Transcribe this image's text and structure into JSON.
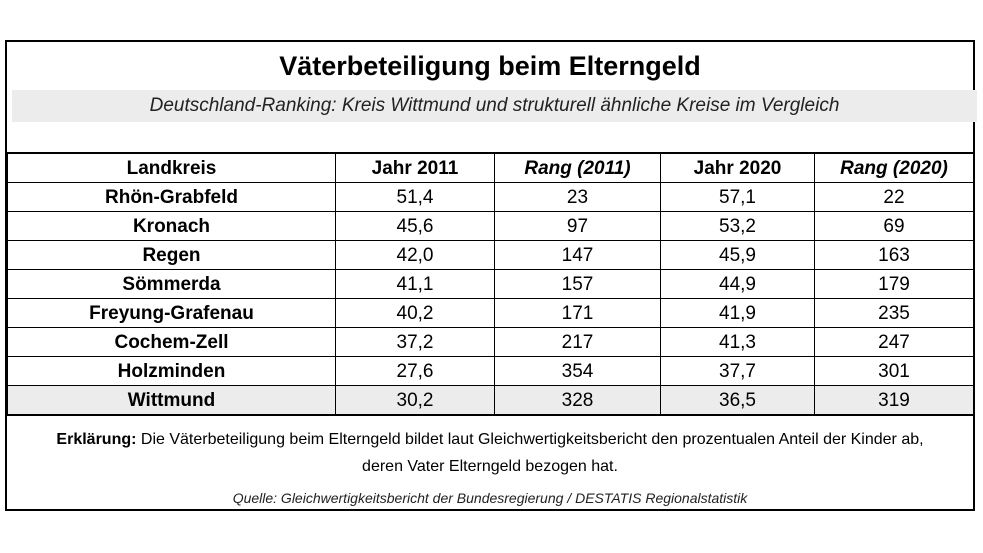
{
  "title": "Väterbeteiligung beim Elterngeld",
  "subtitle": "Deutschland-Ranking: Kreis Wittmund und strukturell ähnliche Kreise im Vergleich",
  "table": {
    "headers": [
      "Landkreis",
      "Jahr 2011",
      "Rang (2011)",
      "Jahr 2020",
      "Rang (2020)"
    ],
    "rows": [
      [
        "Rhön-Grabfeld",
        "51,4",
        "23",
        "57,1",
        "22"
      ],
      [
        "Kronach",
        "45,6",
        "97",
        "53,2",
        "69"
      ],
      [
        "Regen",
        "42,0",
        "147",
        "45,9",
        "163"
      ],
      [
        "Sömmerda",
        "41,1",
        "157",
        "44,9",
        "179"
      ],
      [
        "Freyung-Grafenau",
        "40,2",
        "171",
        "41,9",
        "235"
      ],
      [
        "Cochem-Zell",
        "37,2",
        "217",
        "41,3",
        "247"
      ],
      [
        "Holzminden",
        "27,6",
        "354",
        "37,7",
        "301"
      ],
      [
        "Wittmund",
        "30,2",
        "328",
        "36,5",
        "319"
      ]
    ]
  },
  "explanation": {
    "label": "Erklärung:",
    "line1": " Die Väterbeteiligung beim Elterngeld bildet laut Gleichwertigkeitsbericht den prozentualen Anteil der Kinder ab,",
    "line2": "deren Vater Elterngeld bezogen hat."
  },
  "source": "Quelle: Gleichwertigkeitsbericht der Bundesregierung / DESTATIS Regionalstatistik",
  "colors": {
    "highlight_row": "#ececec",
    "subtitle_band": "#ececec",
    "border": "#000000"
  }
}
